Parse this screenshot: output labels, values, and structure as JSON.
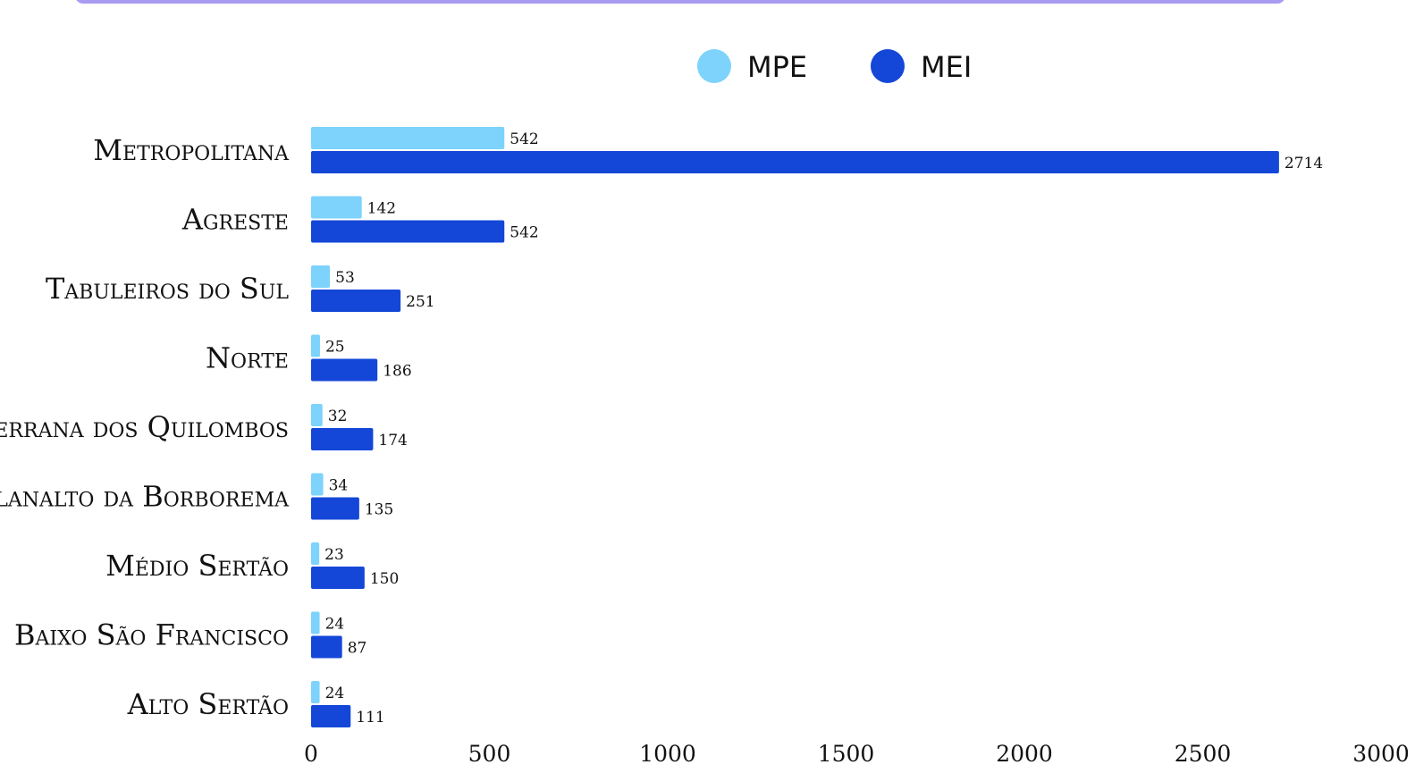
{
  "colors": {
    "MPE": "#7dd3fc",
    "MEI": "#1447d8",
    "frame": "#a99bf0"
  },
  "chart_data": {
    "type": "bar",
    "orientation": "horizontal",
    "title": "",
    "xlabel": "",
    "ylabel": "",
    "xlim": [
      0,
      3000
    ],
    "x_ticks": [
      "0",
      "500",
      "1000",
      "1500",
      "2000",
      "2500",
      "3000"
    ],
    "legend_position": "top",
    "grid": false,
    "categories": [
      "Metropolitana",
      "Agreste",
      "Tabuleiros do Sul",
      "Norte",
      "Serrana dos Quilombos",
      "Planalto da Borborema",
      "Médio Sertão",
      "Baixo São Francisco",
      "Alto Sertão"
    ],
    "series": [
      {
        "name": "MPE",
        "values": [
          542,
          142,
          53,
          25,
          32,
          34,
          23,
          24,
          24
        ]
      },
      {
        "name": "MEI",
        "values": [
          2714,
          542,
          251,
          186,
          174,
          135,
          150,
          87,
          111
        ]
      }
    ]
  }
}
